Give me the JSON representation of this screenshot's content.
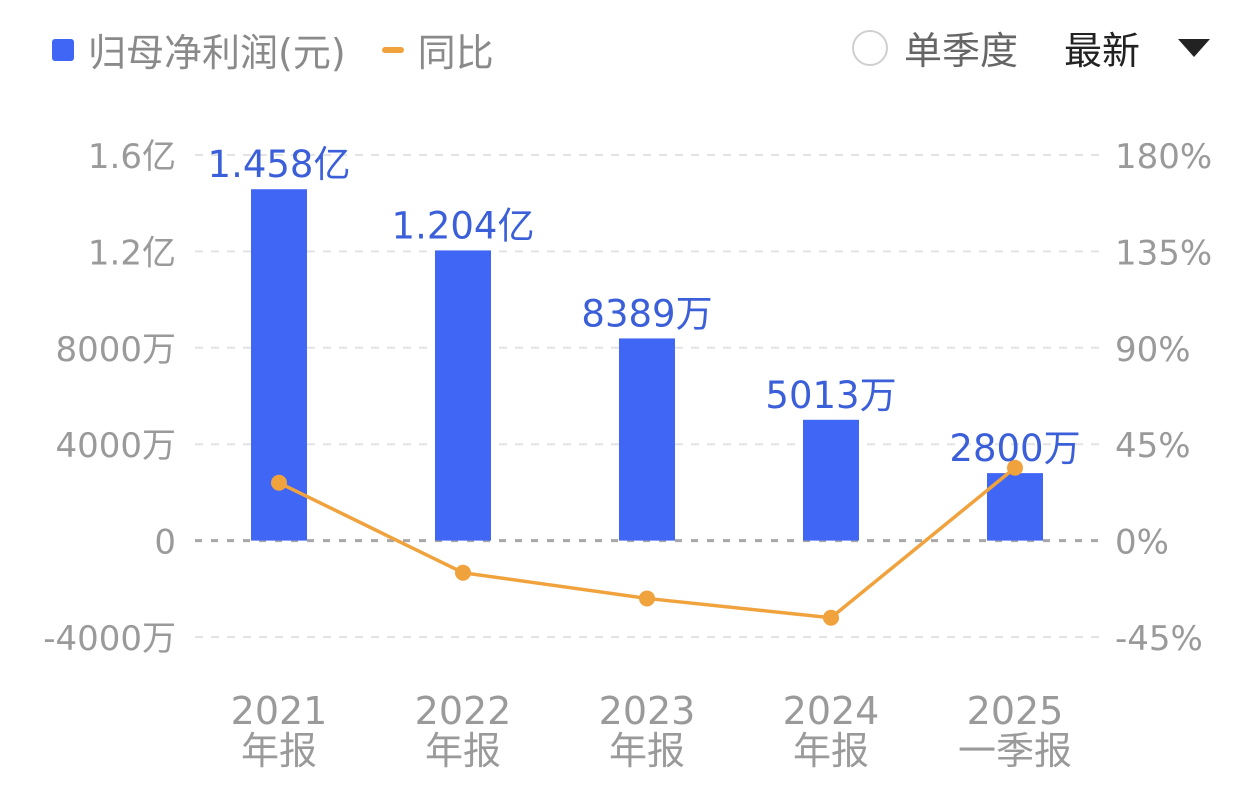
{
  "legend": {
    "bar_label": "归母净利润(元)",
    "line_label": "同比"
  },
  "controls": {
    "quarter_toggle_label": "单季度",
    "period_dropdown_label": "最新"
  },
  "colors": {
    "bar": "#4066f5",
    "line": "#f0a23d",
    "value_label": "#3b5fd9",
    "axis_text": "#9a9a9a",
    "grid": "#e3e3e3",
    "zero_line": "#a8a8a8"
  },
  "chart_data": {
    "type": "bar",
    "categories": [
      [
        "2021",
        "年报"
      ],
      [
        "2022",
        "年报"
      ],
      [
        "2023",
        "年报"
      ],
      [
        "2024",
        "年报"
      ],
      [
        "2025",
        "一季报"
      ]
    ],
    "series": [
      {
        "name": "归母净利润(元)",
        "type": "bar",
        "axis": "left",
        "values": [
          145800000,
          120400000,
          83890000,
          50130000,
          28000000
        ],
        "labels": [
          "1.458亿",
          "1.204亿",
          "8389万",
          "5013万",
          "2800万"
        ]
      },
      {
        "name": "同比",
        "type": "line",
        "axis": "right",
        "values": [
          27,
          -15,
          -27,
          -36,
          34
        ]
      }
    ],
    "left_axis": {
      "ylim": [
        -40000000,
        160000000
      ],
      "ticks": [
        {
          "value": 160000000,
          "label": "1.6亿"
        },
        {
          "value": 120000000,
          "label": "1.2亿"
        },
        {
          "value": 80000000,
          "label": "8000万"
        },
        {
          "value": 40000000,
          "label": "4000万"
        },
        {
          "value": 0,
          "label": "0"
        },
        {
          "value": -40000000,
          "label": "-4000万"
        }
      ]
    },
    "right_axis": {
      "ylim": [
        -45,
        180
      ],
      "ticks": [
        {
          "value": 180,
          "label": "180%"
        },
        {
          "value": 135,
          "label": "135%"
        },
        {
          "value": 90,
          "label": "90%"
        },
        {
          "value": 45,
          "label": "45%"
        },
        {
          "value": 0,
          "label": "0%"
        },
        {
          "value": -45,
          "label": "-45%"
        }
      ]
    },
    "grid": true,
    "legend_position": "top-left"
  }
}
